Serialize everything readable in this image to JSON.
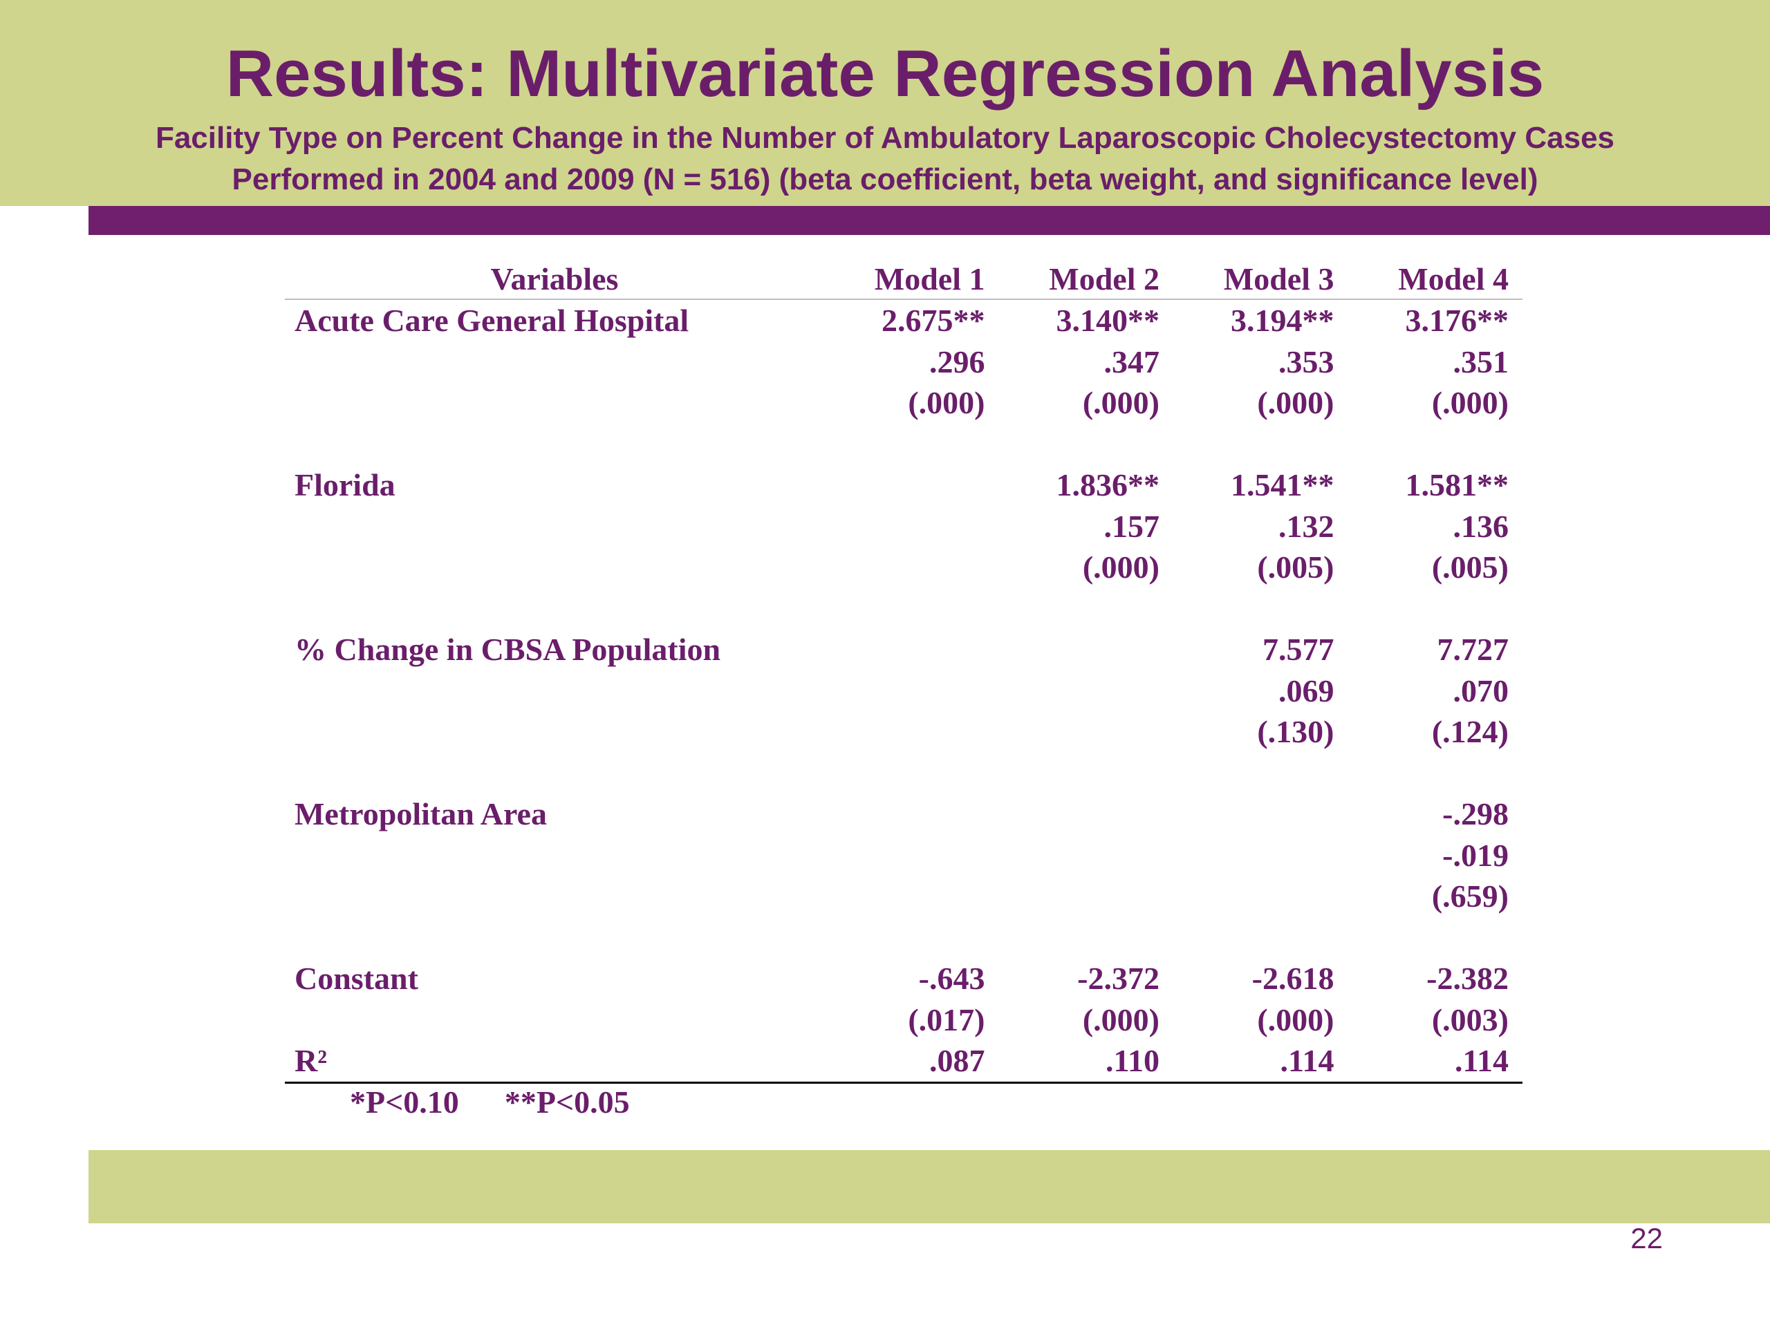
{
  "slide": {
    "title": "Results: Multivariate Regression Analysis",
    "subtitle_line1": "Facility Type on Percent Change in the Number of Ambulatory Laparoscopic Cholecystectomy Cases",
    "subtitle_line2": "Performed in 2004 and 2009 (N = 516) (beta coefficient, beta weight, and significance level)",
    "page_number": "22"
  },
  "table": {
    "headers": [
      "Variables",
      "Model 1",
      "Model 2",
      "Model 3",
      "Model 4"
    ],
    "rows": [
      [
        "Acute Care General Hospital",
        "2.675**",
        "3.140**",
        "3.194**",
        "3.176**"
      ],
      [
        "",
        ".296",
        ".347",
        ".353",
        ".351"
      ],
      [
        "",
        "(.000)",
        "(.000)",
        "(.000)",
        "(.000)"
      ],
      [
        "",
        "",
        "",
        "",
        ""
      ],
      [
        "Florida",
        "",
        "1.836**",
        "1.541**",
        "1.581**"
      ],
      [
        "",
        "",
        ".157",
        ".132",
        ".136"
      ],
      [
        "",
        "",
        "(.000)",
        "(.005)",
        "(.005)"
      ],
      [
        "",
        "",
        "",
        "",
        ""
      ],
      [
        "% Change in CBSA Population",
        "",
        "",
        "7.577",
        "7.727"
      ],
      [
        "",
        "",
        "",
        ".069",
        ".070"
      ],
      [
        "",
        "",
        "",
        "(.130)",
        "(.124)"
      ],
      [
        "",
        "",
        "",
        "",
        ""
      ],
      [
        "Metropolitan Area",
        "",
        "",
        "",
        "-.298"
      ],
      [
        "",
        "",
        "",
        "",
        "-.019"
      ],
      [
        "",
        "",
        "",
        "",
        "(.659)"
      ],
      [
        "",
        "",
        "",
        "",
        ""
      ],
      [
        "Constant",
        "-.643",
        "-2.372",
        "-2.618",
        "-2.382"
      ],
      [
        "",
        "(.017)",
        "(.000)",
        "(.000)",
        "(.003)"
      ],
      [
        "R²",
        ".087",
        ".110",
        ".114",
        ".114"
      ]
    ],
    "footnote_1": "*P<0.10",
    "footnote_2": "**P<0.05"
  },
  "colors": {
    "accent_green": "#cfd58c",
    "accent_purple": "#6f1f6e",
    "text_purple": "#6a1e6a"
  }
}
